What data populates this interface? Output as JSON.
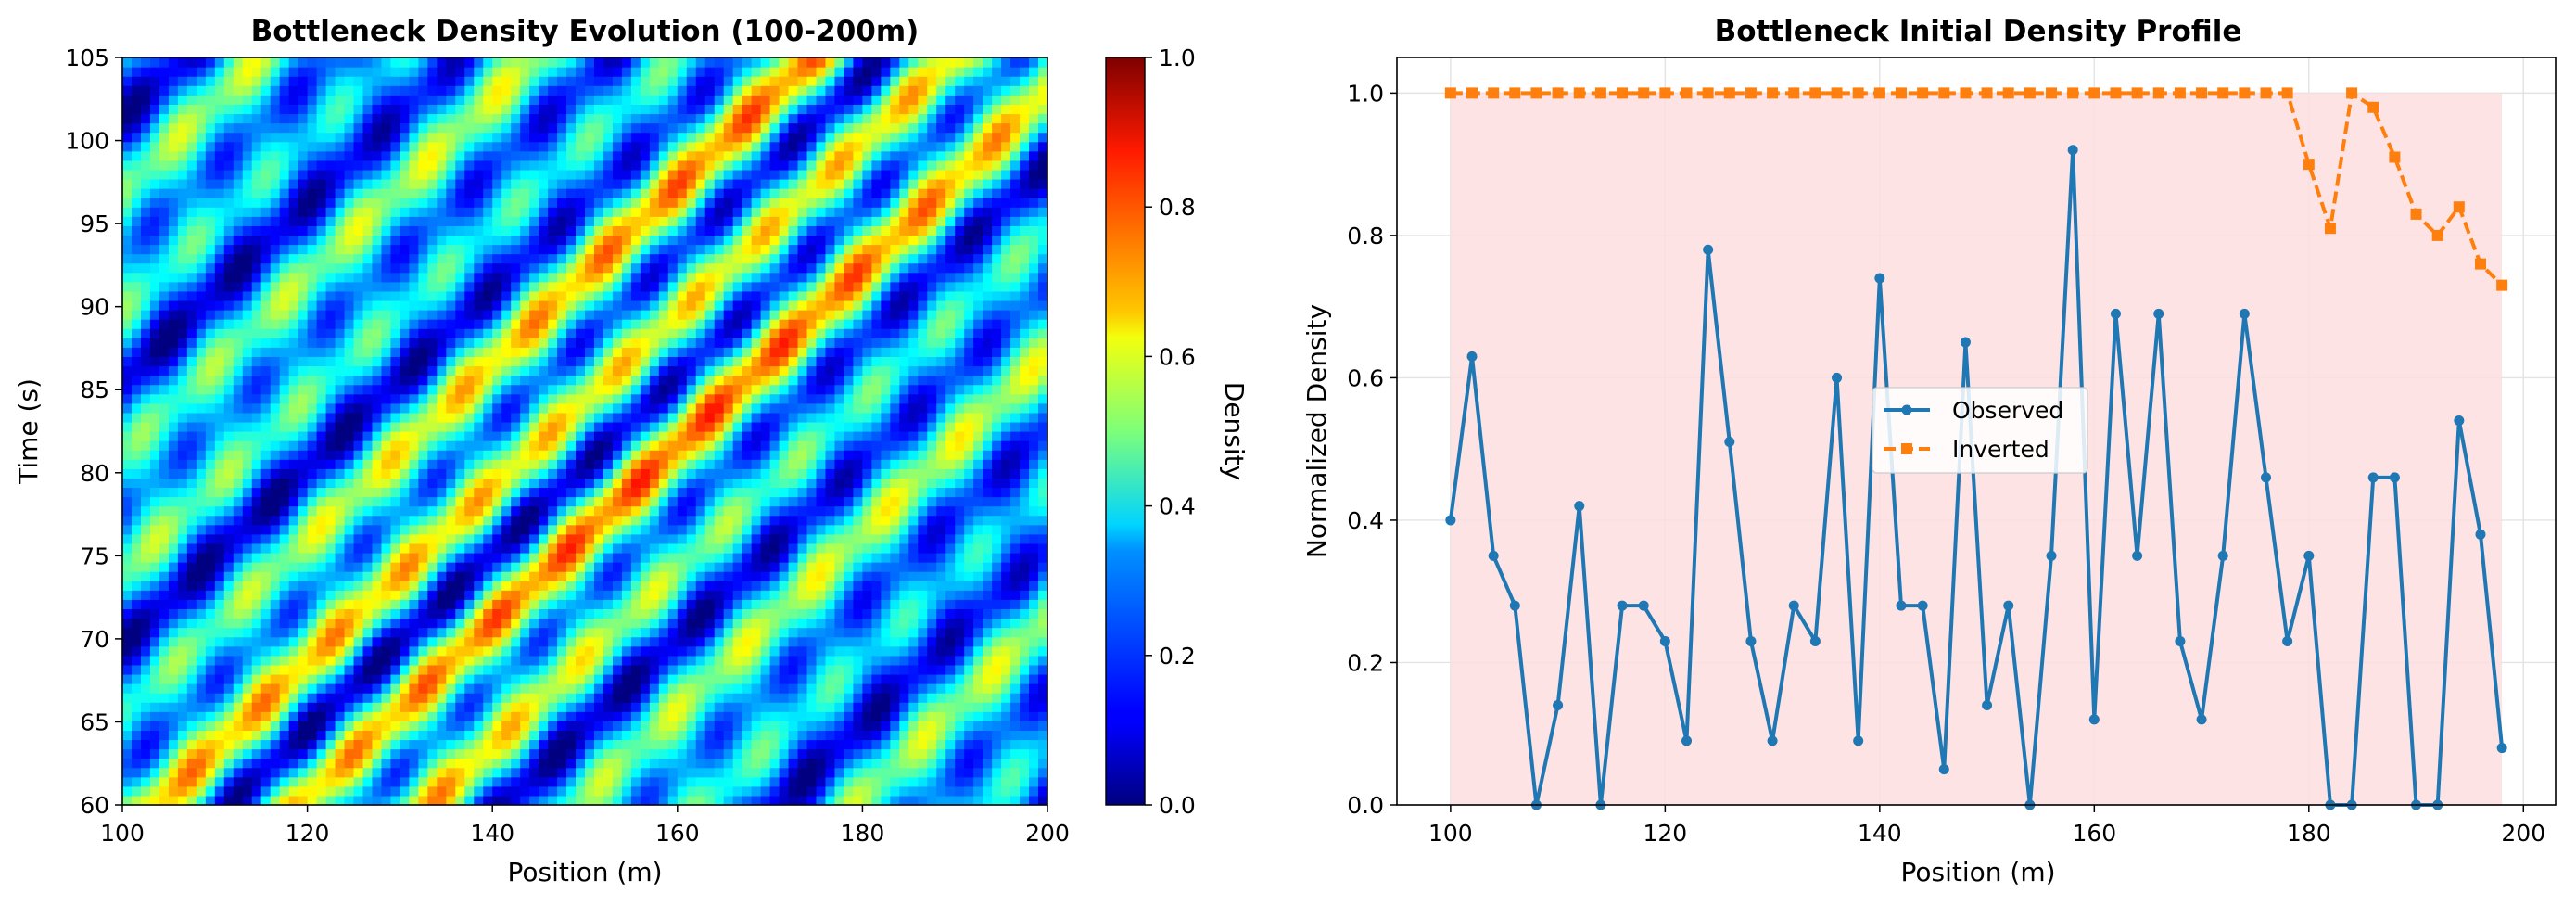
{
  "chart_data": [
    {
      "type": "heatmap",
      "title": "Bottleneck Density Evolution (100-200m)",
      "xlabel": "Position (m)",
      "ylabel": "Time (s)",
      "xlim": [
        100,
        200
      ],
      "ylim": [
        60,
        105
      ],
      "xticks": [
        "100",
        "120",
        "140",
        "160",
        "180",
        "200"
      ],
      "yticks": [
        "60",
        "65",
        "70",
        "75",
        "80",
        "85",
        "90",
        "95",
        "100",
        "105"
      ],
      "colormap": "jet",
      "colorbar": {
        "label": "Density",
        "range": [
          0,
          1
        ],
        "ticks": [
          "0.0",
          "0.2",
          "0.4",
          "0.6",
          "0.8",
          "1.0"
        ]
      },
      "pattern_note": "diagonal stripes"
    },
    {
      "type": "line",
      "title": "Bottleneck Initial Density Profile",
      "xlabel": "Position (m)",
      "ylabel": "Normalized Density",
      "xlim": [
        95,
        203
      ],
      "ylim": [
        0,
        1.05
      ],
      "xticks": [
        "100",
        "120",
        "140",
        "160",
        "180",
        "200"
      ],
      "yticks": [
        "0.0",
        "0.2",
        "0.4",
        "0.6",
        "0.8",
        "1.0"
      ],
      "grid": true,
      "legend_position": "center",
      "shaded_region": {
        "x": [
          100,
          198
        ],
        "y": [
          0,
          1.0
        ],
        "color": "#fddede"
      },
      "x": [
        100,
        102,
        104,
        106,
        108,
        110,
        112,
        114,
        116,
        118,
        120,
        122,
        124,
        126,
        128,
        130,
        132,
        134,
        136,
        138,
        140,
        142,
        144,
        146,
        148,
        150,
        152,
        154,
        156,
        158,
        160,
        162,
        164,
        166,
        168,
        170,
        172,
        174,
        176,
        178,
        180,
        182,
        184,
        186,
        188,
        190,
        192,
        194,
        196,
        198
      ],
      "series": [
        {
          "name": "Observed",
          "color": "#1f77b4",
          "marker": "circle",
          "linestyle": "solid",
          "values": [
            0.4,
            0.63,
            0.35,
            0.28,
            0.0,
            0.14,
            0.42,
            0.0,
            0.28,
            0.28,
            0.23,
            0.09,
            0.78,
            0.51,
            0.23,
            0.09,
            0.28,
            0.23,
            0.6,
            0.09,
            0.74,
            0.28,
            0.28,
            0.05,
            0.65,
            0.14,
            0.28,
            0.0,
            0.35,
            0.92,
            0.12,
            0.69,
            0.35,
            0.69,
            0.23,
            0.12,
            0.35,
            0.69,
            0.46,
            0.23,
            0.35,
            0.0,
            0.0,
            0.46,
            0.46,
            0.0,
            0.0,
            0.54,
            0.38,
            0.08
          ]
        },
        {
          "name": "Inverted",
          "color": "#ff7f0e",
          "marker": "square",
          "linestyle": "dashed",
          "values": [
            1.0,
            1.0,
            1.0,
            1.0,
            1.0,
            1.0,
            1.0,
            1.0,
            1.0,
            1.0,
            1.0,
            1.0,
            1.0,
            1.0,
            1.0,
            1.0,
            1.0,
            1.0,
            1.0,
            1.0,
            1.0,
            1.0,
            1.0,
            1.0,
            1.0,
            1.0,
            1.0,
            1.0,
            1.0,
            1.0,
            1.0,
            1.0,
            1.0,
            1.0,
            1.0,
            1.0,
            1.0,
            1.0,
            1.0,
            1.0,
            0.9,
            0.81,
            1.0,
            0.98,
            0.91,
            0.83,
            0.8,
            0.84,
            0.76,
            0.73
          ]
        }
      ]
    }
  ]
}
